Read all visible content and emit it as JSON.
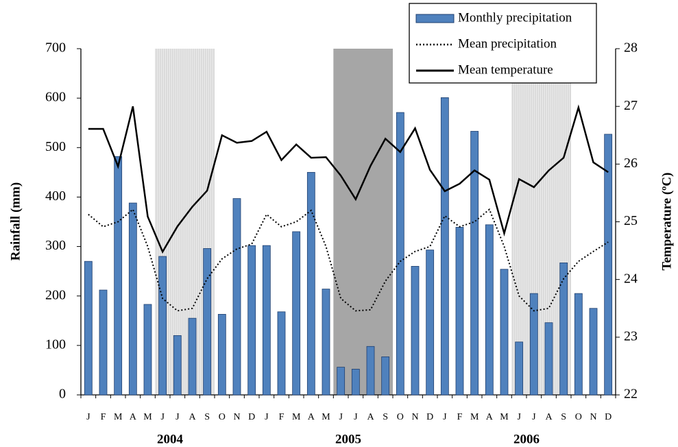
{
  "chart_data": {
    "type": "bar",
    "categories": [
      "J",
      "F",
      "M",
      "A",
      "M",
      "J",
      "J",
      "A",
      "S",
      "O",
      "N",
      "D",
      "J",
      "F",
      "M",
      "A",
      "M",
      "J",
      "J",
      "A",
      "S",
      "O",
      "N",
      "D",
      "J",
      "F",
      "M",
      "A",
      "M",
      "J",
      "J",
      "A",
      "S",
      "O",
      "N",
      "D"
    ],
    "years": [
      "2004",
      "2005",
      "2006"
    ],
    "ylabel": "Rainfall (mm)",
    "y2label": "Temperature (ºC)",
    "ylim": [
      0,
      700
    ],
    "yticks": [
      0,
      100,
      200,
      300,
      400,
      500,
      600,
      700
    ],
    "y2lim": [
      22,
      28
    ],
    "y2ticks": [
      22,
      23,
      24,
      25,
      26,
      27,
      28
    ],
    "shaded_periods": [
      {
        "from": 5,
        "to": 8,
        "fill": "#d9d9d9"
      },
      {
        "from": 17,
        "to": 20,
        "fill": "#a6a6a6"
      },
      {
        "from": 29,
        "to": 32,
        "fill": "#d9d9d9"
      }
    ],
    "series": [
      {
        "name": "Monthly precipitation",
        "type": "bar",
        "axis": "y",
        "color": "#4f81bd",
        "values": [
          270,
          212,
          482,
          388,
          183,
          280,
          120,
          155,
          296,
          163,
          397,
          302,
          302,
          168,
          330,
          450,
          214,
          56,
          52,
          98,
          77,
          571,
          260,
          293,
          601,
          339,
          533,
          344,
          254,
          107,
          205,
          146,
          267,
          205,
          175,
          527
        ]
      },
      {
        "name": "Mean precipitation",
        "type": "line",
        "axis": "y",
        "color": "#000000",
        "dash": "dotted",
        "values": [
          365,
          340,
          350,
          375,
          300,
          195,
          170,
          175,
          235,
          275,
          295,
          305,
          365,
          340,
          350,
          373,
          300,
          195,
          170,
          172,
          230,
          270,
          290,
          300,
          362,
          340,
          350,
          375,
          300,
          200,
          170,
          175,
          235,
          270,
          290,
          309
        ]
      },
      {
        "name": "Mean temperature",
        "type": "line",
        "axis": "y2",
        "color": "#000000",
        "dash": "solid",
        "values": [
          26.61,
          26.61,
          25.96,
          27.0,
          25.09,
          24.48,
          24.92,
          25.26,
          25.54,
          26.5,
          26.37,
          26.4,
          26.56,
          26.07,
          26.34,
          26.11,
          26.12,
          25.8,
          25.39,
          25.97,
          26.44,
          26.21,
          26.62,
          25.9,
          25.53,
          25.66,
          25.89,
          25.73,
          24.8,
          25.74,
          25.6,
          25.89,
          26.11,
          26.98,
          26.03,
          25.86
        ]
      }
    ]
  }
}
